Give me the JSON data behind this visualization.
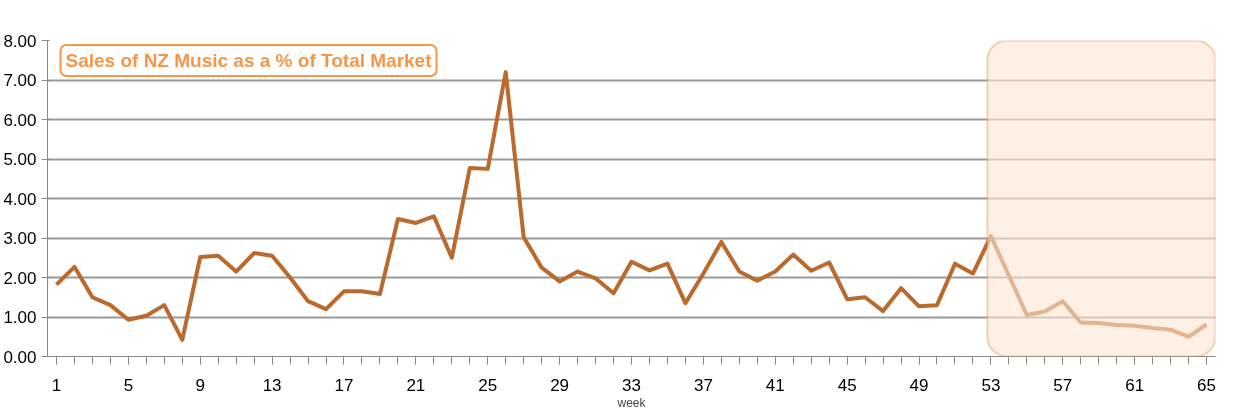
{
  "chart_data": {
    "type": "line",
    "title": "Sales of NZ Music as a % of Total Market",
    "xlabel": "week",
    "x": [
      1,
      2,
      3,
      4,
      5,
      6,
      7,
      8,
      9,
      10,
      11,
      12,
      13,
      14,
      15,
      16,
      17,
      18,
      19,
      20,
      21,
      22,
      23,
      24,
      25,
      26,
      27,
      28,
      29,
      30,
      31,
      32,
      33,
      34,
      35,
      36,
      37,
      38,
      39,
      40,
      41,
      42,
      43,
      44,
      45,
      46,
      47,
      48,
      49,
      50,
      51,
      52,
      53,
      54,
      55,
      56,
      57,
      58,
      59,
      60,
      61,
      62,
      63,
      64,
      65
    ],
    "series": [
      {
        "color": "#b96a2c",
        "values": [
          1.82,
          2.27,
          1.5,
          1.3,
          0.93,
          1.03,
          1.3,
          0.42,
          2.52,
          2.55,
          2.15,
          2.62,
          2.55,
          2.0,
          1.4,
          1.2,
          1.65,
          1.65,
          1.58,
          3.48,
          3.38,
          3.55,
          2.5,
          4.77,
          4.75,
          7.2,
          3.02,
          2.25,
          1.9,
          2.15,
          1.98,
          1.6,
          2.4,
          2.18,
          2.35,
          1.35,
          2.1,
          2.9,
          2.15,
          1.92,
          2.15,
          2.58,
          2.17,
          2.38,
          1.45,
          1.5,
          1.15,
          1.73,
          1.27,
          1.3,
          2.35,
          2.1,
          3.05,
          2.05,
          1.05,
          1.14,
          1.4,
          0.86,
          0.85,
          0.8,
          0.78,
          0.72,
          0.68,
          0.5,
          0.81
        ]
      }
    ],
    "xlim": [
      0.5,
      65.5
    ],
    "xticks": [
      1,
      5,
      9,
      13,
      17,
      21,
      25,
      29,
      33,
      37,
      41,
      45,
      49,
      53,
      57,
      61,
      65
    ],
    "ylim": [
      0,
      8
    ],
    "yticks": [
      {
        "value": 0,
        "label": "0.00"
      },
      {
        "value": 1,
        "label": "1.00"
      },
      {
        "value": 2,
        "label": "2.00"
      },
      {
        "value": 3,
        "label": "3.00"
      },
      {
        "value": 4,
        "label": "4.00"
      },
      {
        "value": 5,
        "label": "5.00"
      },
      {
        "value": 6,
        "label": "6.00"
      },
      {
        "value": 7,
        "label": "7.00"
      },
      {
        "value": 8,
        "label": "8.00"
      }
    ],
    "grid": "y",
    "marker": "none",
    "line_style": "solid",
    "bands": [
      {
        "axis": "x",
        "from": 52.8,
        "to": 65.5,
        "color": "#fde6d4"
      }
    ]
  }
}
